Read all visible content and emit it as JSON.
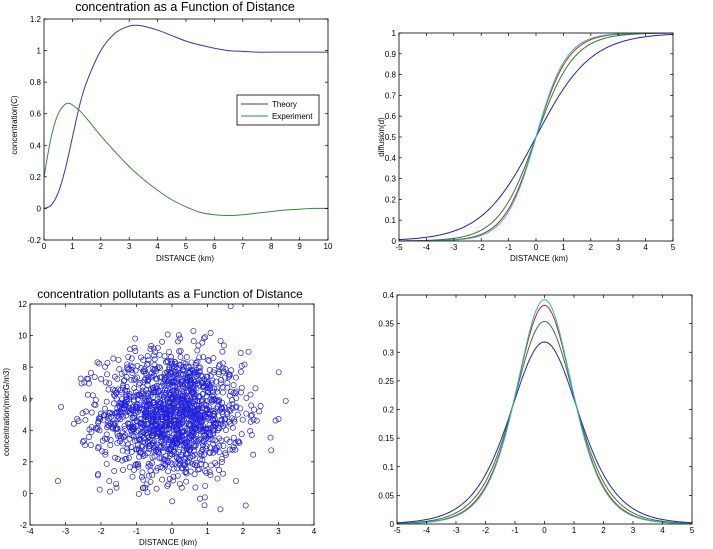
{
  "figure": {
    "background": "#ffffff",
    "axis_color": "#000000",
    "font_color": "#000000"
  },
  "chart_data": [
    {
      "id": "p1",
      "type": "line",
      "title": "concentration as a Function of Distance",
      "xlabel": "DISTANCE (km)",
      "ylabel": "concentration(C)",
      "xlim": [
        0,
        10
      ],
      "ylim": [
        -0.2,
        1.2
      ],
      "xticks": [
        0,
        1,
        2,
        3,
        4,
        5,
        6,
        7,
        8,
        9,
        10
      ],
      "yticks": [
        -0.2,
        0,
        0.2,
        0.4,
        0.6,
        0.8,
        1,
        1.2
      ],
      "grid": false,
      "legend": {
        "position": "right-middle",
        "entries": [
          "Theory",
          "Experiment"
        ]
      },
      "series": [
        {
          "name": "Theory",
          "color": "#3333cc",
          "x": [
            0,
            0.25,
            0.5,
            0.75,
            1,
            1.25,
            1.5,
            2,
            2.5,
            3,
            3.3,
            3.5,
            4,
            4.5,
            5,
            5.5,
            6,
            6.5,
            7,
            7.5,
            8,
            8.5,
            9,
            9.5,
            10
          ],
          "y": [
            0,
            0.02,
            0.1,
            0.25,
            0.45,
            0.65,
            0.8,
            1.0,
            1.11,
            1.155,
            1.16,
            1.155,
            1.13,
            1.095,
            1.06,
            1.035,
            1.015,
            1.0,
            0.995,
            0.99,
            0.99,
            0.99,
            0.99,
            0.99,
            0.99
          ]
        },
        {
          "name": "Experiment",
          "color": "#3a8a3a",
          "x": [
            0,
            0.25,
            0.5,
            0.75,
            0.9,
            1,
            1.25,
            1.5,
            2,
            2.5,
            3,
            3.5,
            4,
            4.5,
            5,
            5.5,
            6,
            6.5,
            7,
            7.5,
            8,
            8.5,
            9,
            9.5,
            10
          ],
          "y": [
            0.2,
            0.45,
            0.6,
            0.66,
            0.665,
            0.655,
            0.62,
            0.57,
            0.46,
            0.36,
            0.265,
            0.185,
            0.115,
            0.055,
            0.01,
            -0.025,
            -0.04,
            -0.045,
            -0.04,
            -0.03,
            -0.02,
            -0.01,
            -0.005,
            0,
            0
          ]
        }
      ]
    },
    {
      "id": "p2",
      "type": "line",
      "title": "",
      "xlabel": "DISTANCE (km)",
      "ylabel": "diffusion(d)",
      "xlim": [
        -5,
        5
      ],
      "ylim": [
        0,
        1
      ],
      "xticks": [
        -5,
        -4,
        -3,
        -2,
        -1,
        0,
        1,
        2,
        3,
        4,
        5
      ],
      "yticks": [
        0,
        0.1,
        0.2,
        0.3,
        0.4,
        0.5,
        0.6,
        0.7,
        0.8,
        0.9,
        1
      ],
      "grid": false,
      "series": [
        {
          "color": "#2020c8",
          "kind": "logistic",
          "param": 1.0
        },
        {
          "color": "#2e7d2e",
          "kind": "logistic",
          "param": 1.45
        },
        {
          "color": "#d42020",
          "kind": "logistic",
          "param": 1.7
        },
        {
          "color": "#20c0c0",
          "kind": "logistic",
          "param": 1.8
        }
      ]
    },
    {
      "id": "p3",
      "type": "scatter",
      "title": "concentration pollutants as a Function of Distance",
      "xlabel": "DISTANCE (km)",
      "ylabel": "concentration(micrG/m3)",
      "xlim": [
        -4,
        4
      ],
      "ylim": [
        -2,
        12
      ],
      "xticks": [
        -4,
        -3,
        -2,
        -1,
        0,
        1,
        2,
        3,
        4
      ],
      "yticks": [
        -2,
        0,
        2,
        4,
        6,
        8,
        10,
        12
      ],
      "grid": false,
      "marker": "open-circle",
      "color": "#2222dd",
      "distribution": {
        "x_mean": 0,
        "x_std": 1.0,
        "y_mean": 5,
        "y_std": 2.0,
        "count": 1500
      }
    },
    {
      "id": "p4",
      "type": "line",
      "title": "",
      "xlabel": "",
      "ylabel": "",
      "xlim": [
        -5,
        5
      ],
      "ylim": [
        0,
        0.4
      ],
      "xticks": [
        -5,
        -4,
        -3,
        -2,
        -1,
        0,
        1,
        2,
        3,
        4,
        5
      ],
      "yticks": [
        0,
        0.05,
        0.1,
        0.15,
        0.2,
        0.25,
        0.3,
        0.35,
        0.4
      ],
      "grid": false,
      "series": [
        {
          "color": "#2020c8",
          "kind": "logistic-pdf",
          "param": 1.27,
          "peak": 0.318
        },
        {
          "color": "#2e7d2e",
          "kind": "logistic-pdf",
          "param": 1.42,
          "peak": 0.354
        },
        {
          "color": "#d42020",
          "kind": "logistic-pdf",
          "param": 1.53,
          "peak": 0.382
        },
        {
          "color": "#20c0c0",
          "kind": "logistic-pdf",
          "param": 1.57,
          "peak": 0.392
        }
      ]
    }
  ]
}
